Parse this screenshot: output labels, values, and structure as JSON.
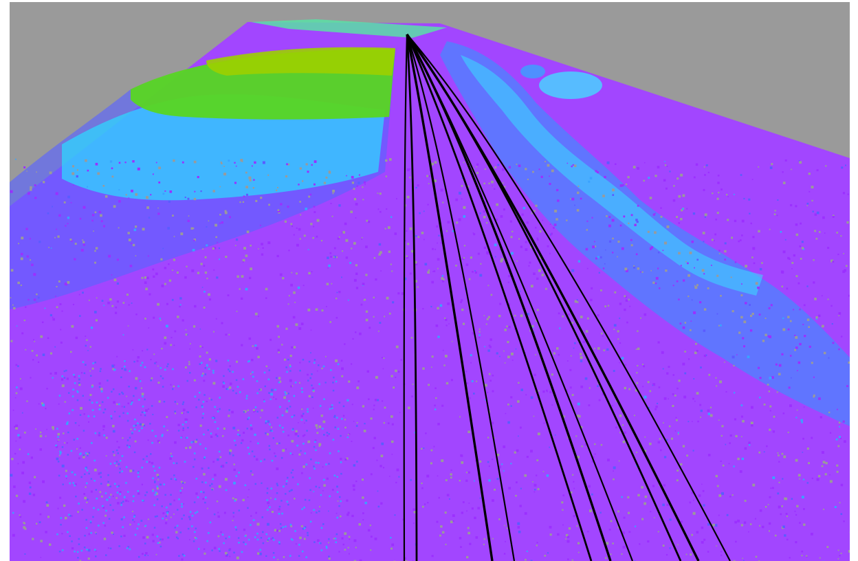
{
  "view": {
    "background_color": "#9a9a9a",
    "border_color": "#ffffff",
    "colormap": [
      "#9b30ff",
      "#5a5cff",
      "#3aa2ff",
      "#35e8ff",
      "#58e06a",
      "#9cd200"
    ],
    "ground_color": "#a13aff",
    "line_color": "#000000",
    "wire_count": 10
  }
}
